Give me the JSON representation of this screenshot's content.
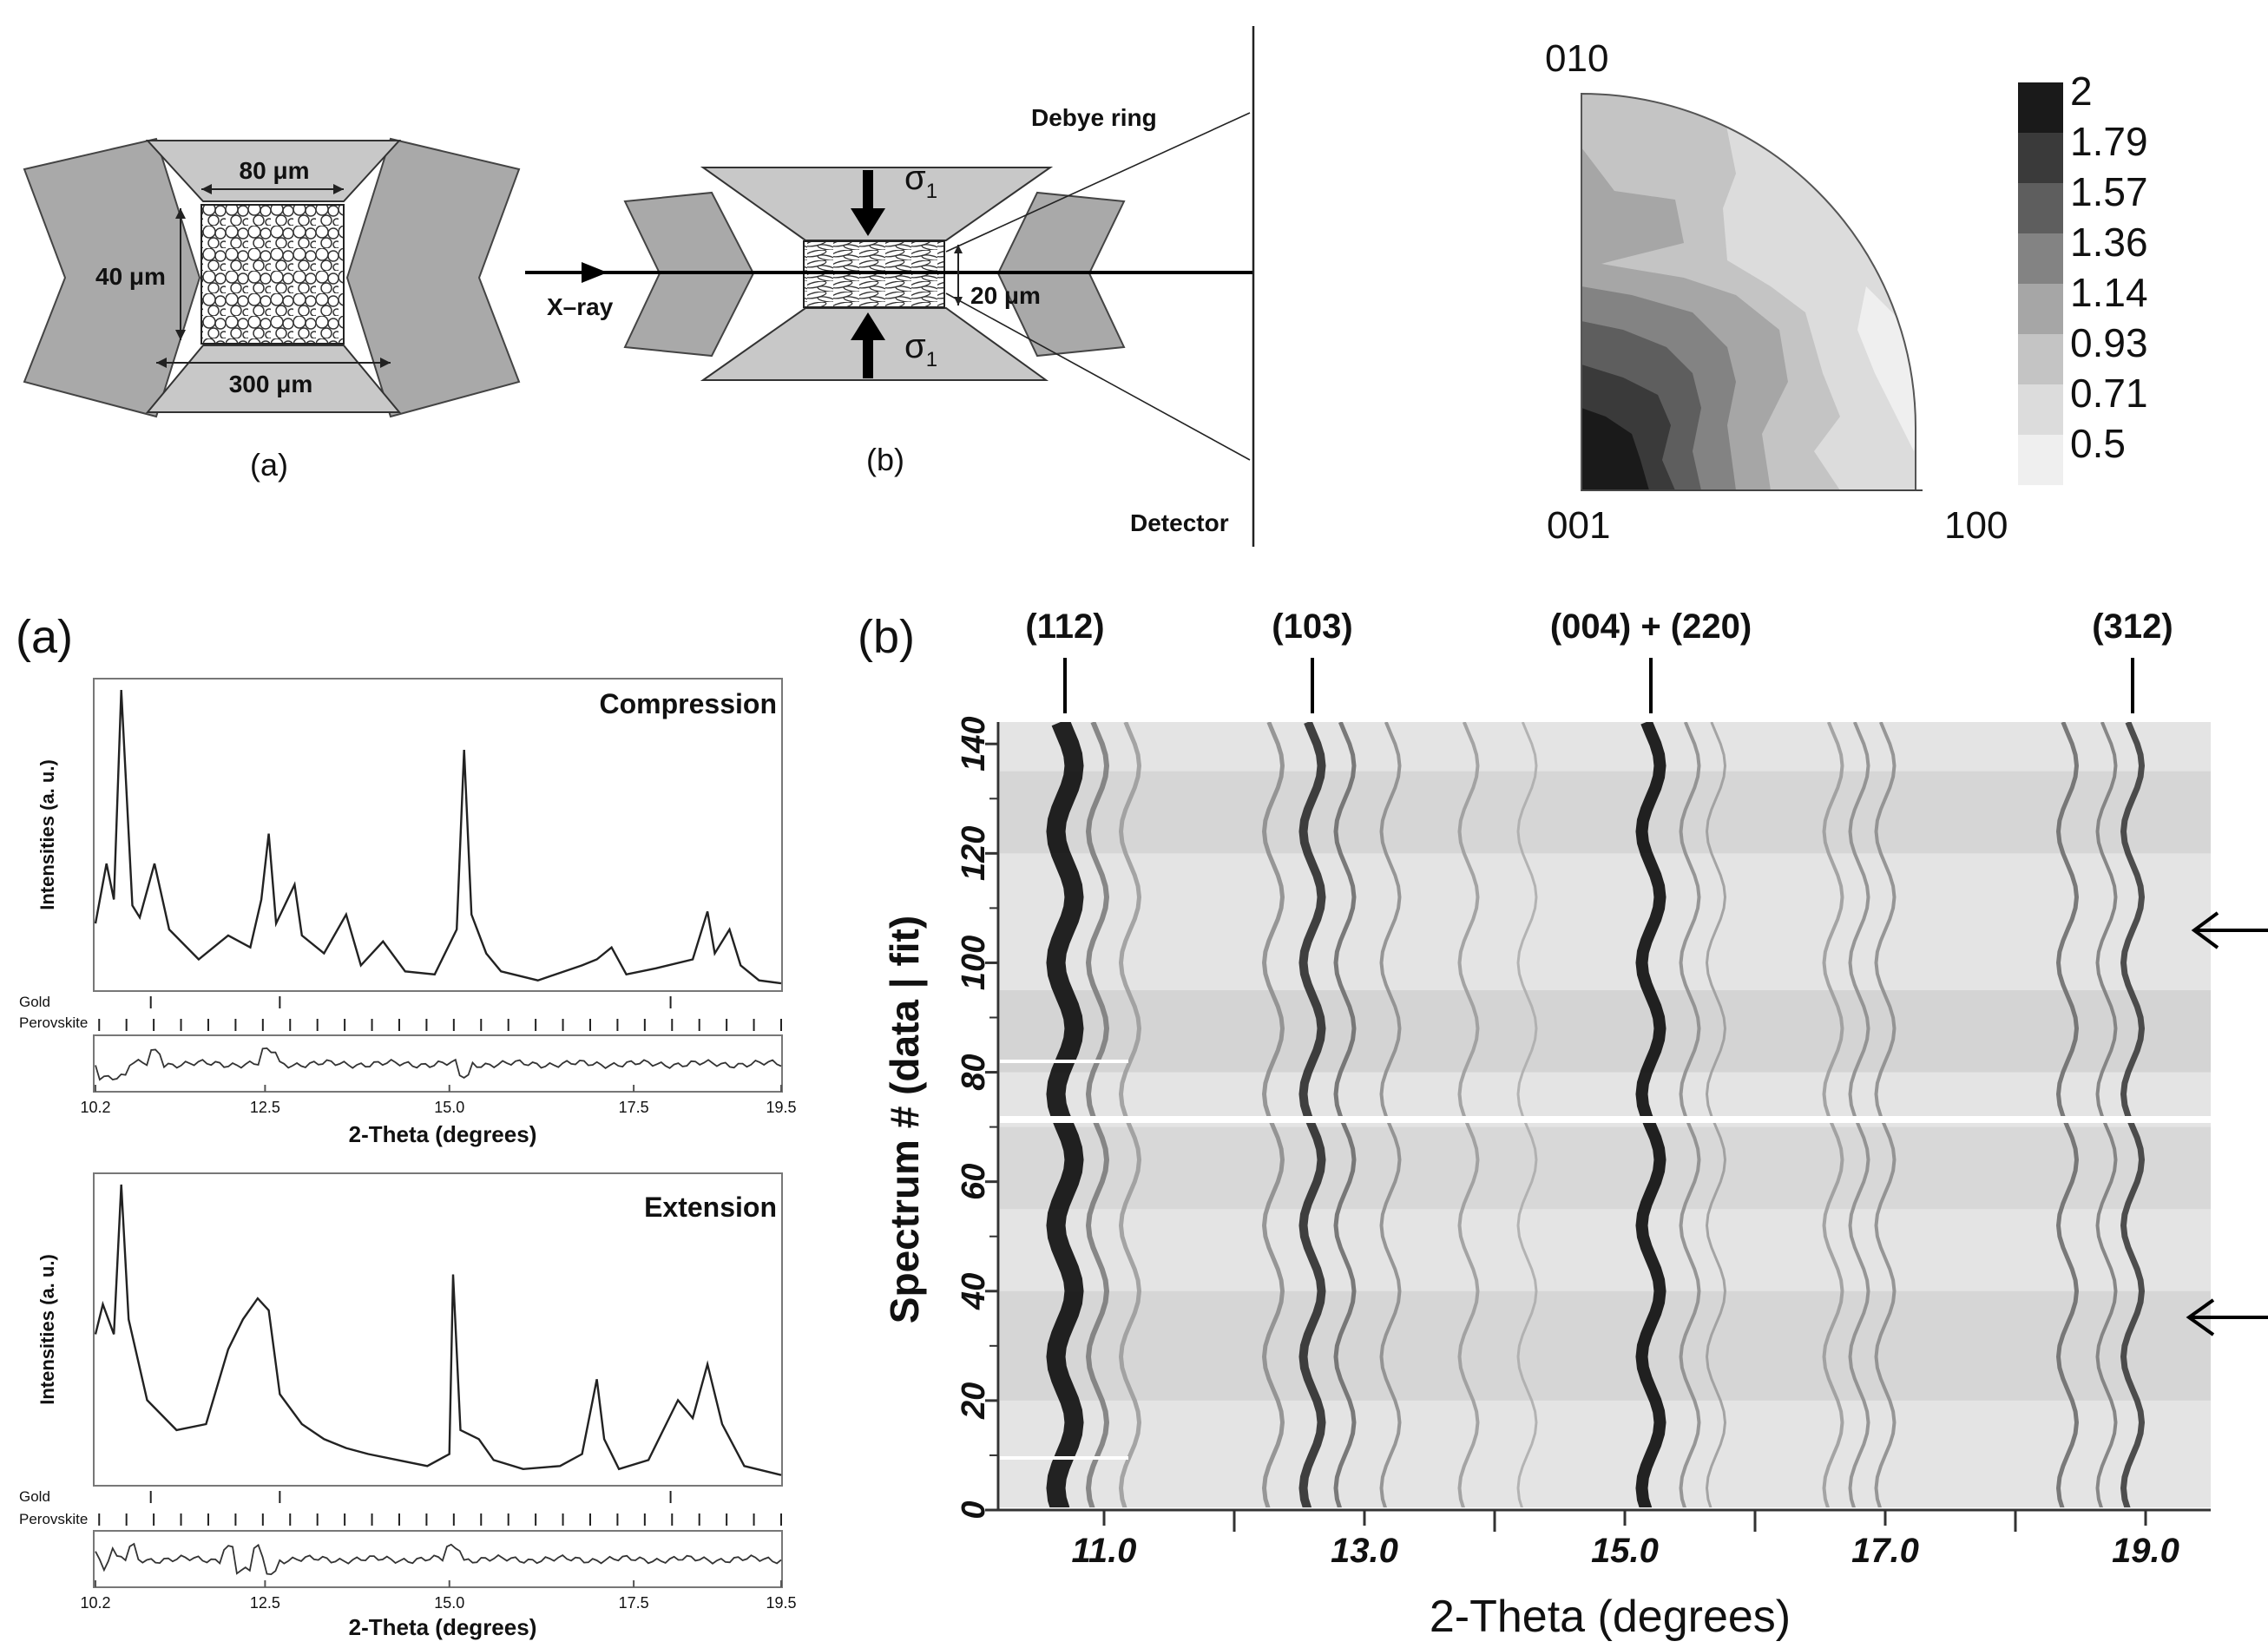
{
  "top_left": {
    "panel_a_label": "(a)",
    "panel_b_label": "(b)",
    "dim_80": "80 μm",
    "dim_40": "40 μm",
    "dim_300": "300 μm",
    "dim_20": "20 μm",
    "xray": "X–ray",
    "debye": "Debye ring",
    "detector": "Detector",
    "sigma_top": "σ",
    "sigma_bot": "σ",
    "sigma_sub": "1"
  },
  "pole_figure": {
    "label_010": "010",
    "label_001": "001",
    "label_100": "100",
    "colorbar_labels": [
      "2",
      "1.79",
      "1.57",
      "1.36",
      "1.14",
      "0.93",
      "0.71",
      "0.5"
    ],
    "colorbar_colors": [
      "#1a1a1a",
      "#3a3a3a",
      "#5e5e5e",
      "#838383",
      "#a6a6a6",
      "#c4c4c4",
      "#dcdcdc",
      "#efefef"
    ]
  },
  "panel_a": {
    "label": "(a)",
    "compression": {
      "title": "Compression",
      "ylabel": "Intensities (a. u.)",
      "xlabel": "2-Theta (degrees)",
      "phase_gold": "Gold",
      "phase_perovskite": "Perovskite",
      "xticks": [
        "10.2",
        "12.5",
        "15.0",
        "17.5",
        "19.5"
      ]
    },
    "extension": {
      "title": "Extension",
      "ylabel": "Intensities (a. u.)",
      "xlabel": "2-Theta (degrees)",
      "phase_gold": "Gold",
      "phase_perovskite": "Perovskite",
      "xticks": [
        "10.2",
        "12.5",
        "15.0",
        "17.5",
        "19.5"
      ]
    }
  },
  "panel_b": {
    "label": "(b)",
    "peaks": [
      "(112)",
      "(103)",
      "(004) + (220)",
      "(312)"
    ],
    "ylabel": "Spectrum # (data | fit)",
    "xlabel": "2-Theta (degrees)",
    "yticks": [
      "0",
      "20",
      "40",
      "60",
      "80",
      "100",
      "120",
      "140"
    ],
    "xticks": [
      "11.0",
      "13.0",
      "15.0",
      "17.0",
      "19.0"
    ]
  },
  "chart_data": [
    {
      "type": "line",
      "title": "Compression",
      "xlabel": "2-Theta (degrees)",
      "ylabel": "Intensities (a. u.)",
      "xlim": [
        10.2,
        19.5
      ],
      "x": [
        10.2,
        10.35,
        10.45,
        10.55,
        10.7,
        10.8,
        11.0,
        11.2,
        11.6,
        12.0,
        12.3,
        12.45,
        12.55,
        12.65,
        12.9,
        13.0,
        13.3,
        13.6,
        13.8,
        14.1,
        14.4,
        14.8,
        15.1,
        15.2,
        15.3,
        15.5,
        15.7,
        16.2,
        16.8,
        17.0,
        17.2,
        17.4,
        17.8,
        18.3,
        18.5,
        18.6,
        18.8,
        18.95,
        19.2,
        19.5
      ],
      "y": [
        0.22,
        0.42,
        0.3,
        1.0,
        0.28,
        0.24,
        0.42,
        0.2,
        0.1,
        0.18,
        0.14,
        0.3,
        0.52,
        0.22,
        0.35,
        0.18,
        0.12,
        0.25,
        0.08,
        0.16,
        0.06,
        0.05,
        0.2,
        0.8,
        0.25,
        0.12,
        0.06,
        0.03,
        0.08,
        0.1,
        0.14,
        0.05,
        0.07,
        0.1,
        0.26,
        0.12,
        0.2,
        0.08,
        0.03,
        0.02
      ]
    },
    {
      "type": "line",
      "title": "Extension",
      "xlabel": "2-Theta (degrees)",
      "ylabel": "Intensities (a. u.)",
      "xlim": [
        10.2,
        19.5
      ],
      "x": [
        10.2,
        10.3,
        10.45,
        10.55,
        10.65,
        10.9,
        11.3,
        11.7,
        12.0,
        12.2,
        12.4,
        12.55,
        12.7,
        13.0,
        13.3,
        13.6,
        13.9,
        14.3,
        14.7,
        15.0,
        15.05,
        15.15,
        15.4,
        15.6,
        16.0,
        16.5,
        16.8,
        17.0,
        17.1,
        17.3,
        17.7,
        18.1,
        18.3,
        18.5,
        18.7,
        19.0,
        19.5
      ],
      "y": [
        0.5,
        0.6,
        0.5,
        1.0,
        0.55,
        0.28,
        0.18,
        0.2,
        0.45,
        0.55,
        0.62,
        0.58,
        0.3,
        0.2,
        0.15,
        0.12,
        0.1,
        0.08,
        0.06,
        0.1,
        0.7,
        0.18,
        0.15,
        0.08,
        0.05,
        0.06,
        0.1,
        0.35,
        0.15,
        0.05,
        0.08,
        0.28,
        0.22,
        0.4,
        0.2,
        0.06,
        0.03
      ]
    },
    {
      "type": "heatmap",
      "xlabel": "2-Theta (degrees)",
      "ylabel": "Spectrum # (data | fit)",
      "xlim": [
        10.2,
        19.5
      ],
      "ylim": [
        0,
        144
      ],
      "peaks": [
        {
          "label": "(112)",
          "x": 10.7
        },
        {
          "label": "(103)",
          "x": 12.6
        },
        {
          "label": "(004) + (220)",
          "x": 15.2
        },
        {
          "label": "(312)",
          "x": 18.9
        }
      ]
    }
  ]
}
